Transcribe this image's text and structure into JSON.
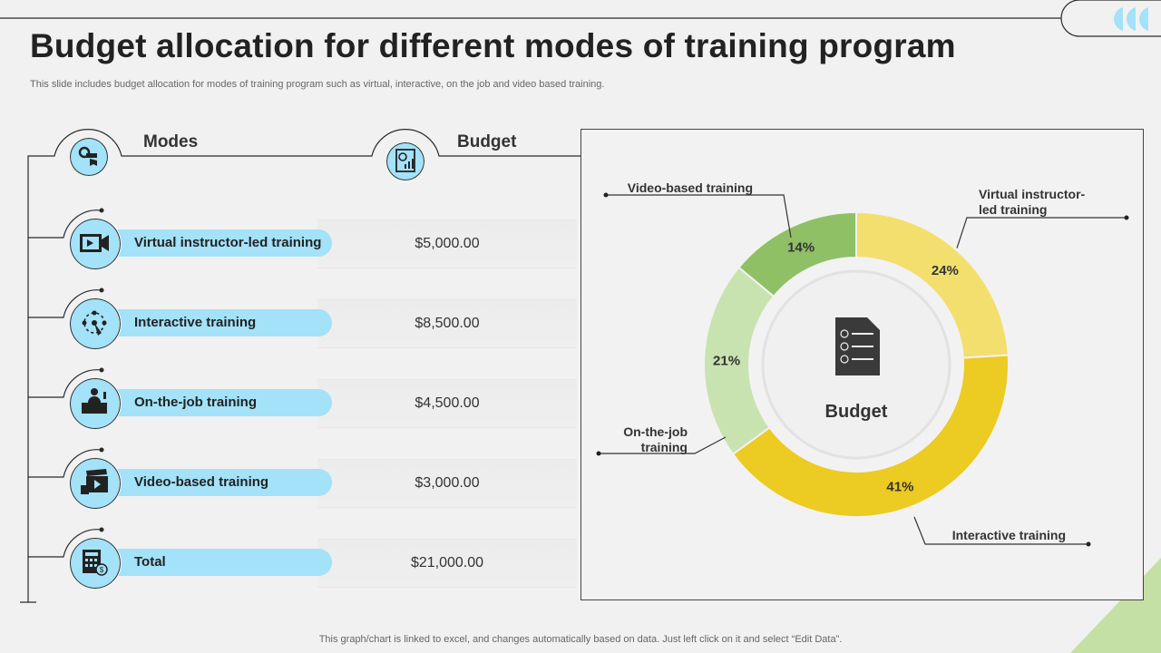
{
  "title": "Budget allocation for different modes of training program",
  "subtitle": "This slide includes budget allocation for modes of training program such as virtual, interactive, on the job and video based training.",
  "footer": "This graph/chart is linked to excel,  and changes automatically based on data. Just left click on it and select “Edit Data”.",
  "headers": {
    "modes": "Modes",
    "budget": "Budget"
  },
  "table": {
    "rows": [
      {
        "mode": "Virtual instructor-led training",
        "budget": "$5,000.00",
        "icon": "video-camera-icon"
      },
      {
        "mode": "Interactive training",
        "budget": "$8,500.00",
        "icon": "network-hand-icon"
      },
      {
        "mode": "On-the-job training",
        "budget": "$4,500.00",
        "icon": "worker-desk-icon"
      },
      {
        "mode": "Video-based training",
        "budget": "$3,000.00",
        "icon": "clapperboard-icon"
      },
      {
        "mode": "Total",
        "budget": "$21,000.00",
        "icon": "calculator-sheet-icon"
      }
    ]
  },
  "chart_data": {
    "type": "pie",
    "center_label": "Budget",
    "categories": [
      "Virtual instructor-led training",
      "Interactive training",
      "On-the-job training",
      "Video-based training"
    ],
    "callouts": [
      "Virtual instructor-\nled training",
      "Interactive training",
      "On-the-job\ntraining",
      "Video-based training"
    ],
    "values": [
      24,
      41,
      21,
      14
    ],
    "labels": [
      "24%",
      "41%",
      "21%",
      "14%"
    ],
    "colors": [
      "#f3df6d",
      "#eccb22",
      "#c8e3b0",
      "#8fc065"
    ]
  },
  "colors": {
    "accent_blue": "#a3e2f8",
    "dark": "#2a2a2a",
    "green_corner": "#c5e0a5"
  }
}
